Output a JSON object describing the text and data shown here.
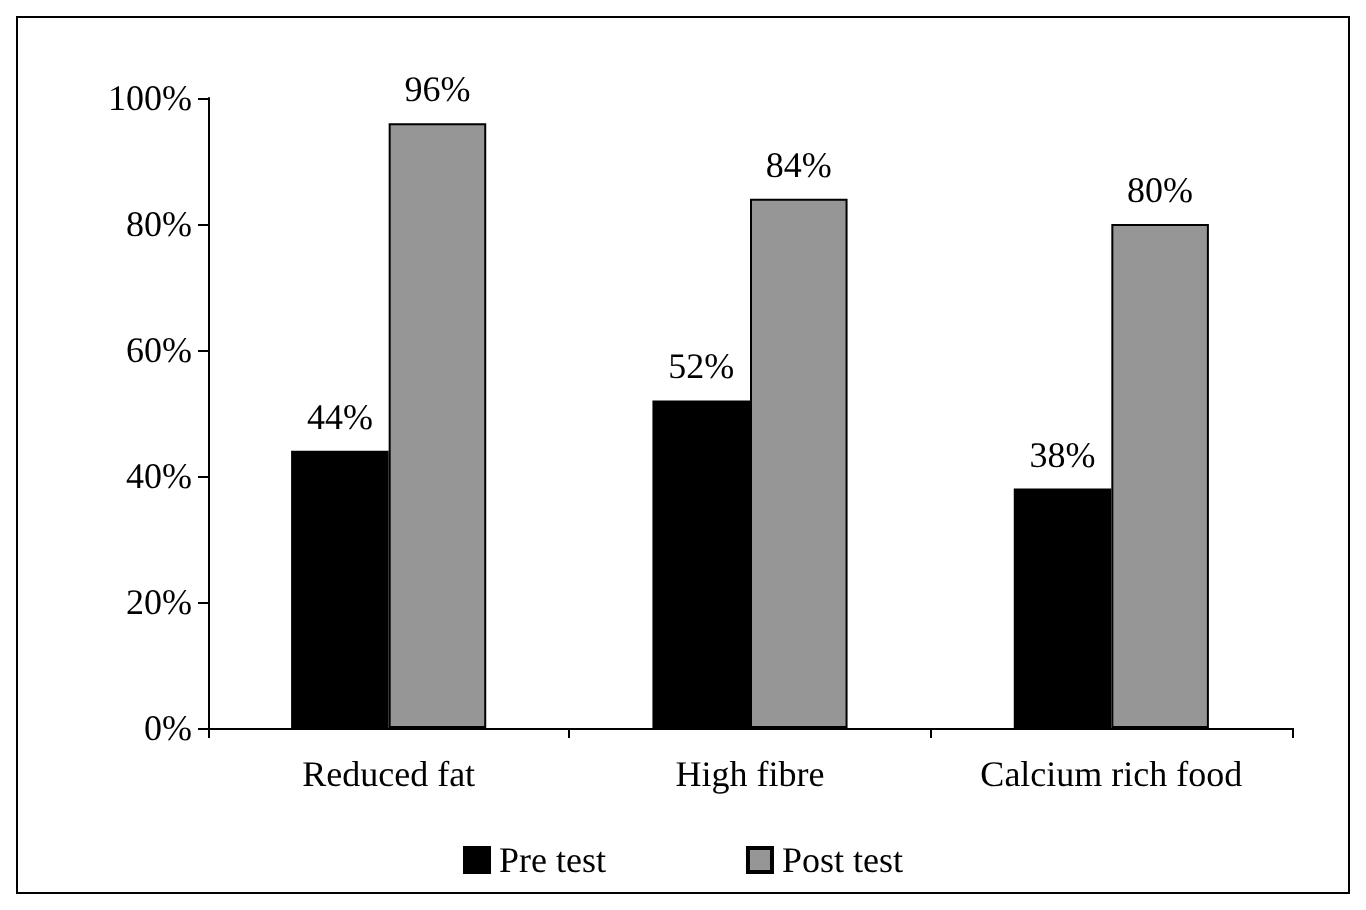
{
  "chart_data": {
    "type": "bar",
    "categories": [
      "Reduced fat",
      "High fibre",
      "Calcium rich food"
    ],
    "series": [
      {
        "name": "Pre test",
        "color": "#000000",
        "values": [
          44,
          52,
          38
        ],
        "value_labels": [
          "44%",
          "52%",
          "38%"
        ]
      },
      {
        "name": "Post test",
        "color": "#969696",
        "values": [
          96,
          84,
          80
        ],
        "value_labels": [
          "96%",
          "84%",
          "80%"
        ]
      }
    ],
    "ylim": [
      0,
      100
    ],
    "yticks": [
      {
        "value": 0,
        "label": "0%"
      },
      {
        "value": 20,
        "label": "20%"
      },
      {
        "value": 40,
        "label": "40%"
      },
      {
        "value": 60,
        "label": "60%"
      },
      {
        "value": 80,
        "label": "80%"
      },
      {
        "value": 100,
        "label": "100%"
      }
    ],
    "grid": false,
    "legend": "bottom"
  }
}
